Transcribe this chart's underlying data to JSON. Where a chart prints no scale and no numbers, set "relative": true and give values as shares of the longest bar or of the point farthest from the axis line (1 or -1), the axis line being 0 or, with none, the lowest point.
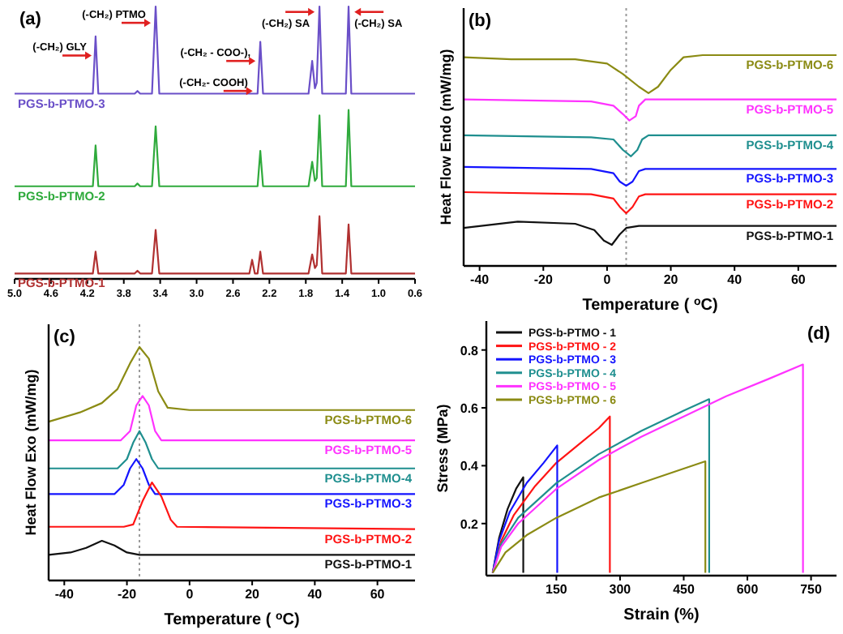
{
  "chart_data": [
    {
      "type": "line",
      "title": "(a)",
      "relative": true,
      "xlim": [
        5.0,
        0.6
      ],
      "xticks": [
        {
          "value": 5,
          "label": "5.0"
        },
        4.6,
        4.2,
        3.8,
        3.4,
        {
          "value": 3,
          "label": "3.0"
        },
        2.6,
        2.2,
        1.8,
        1.4,
        {
          "value": 1,
          "label": "1.0"
        },
        0.6
      ],
      "x": [
        5.0,
        4.14,
        4.11,
        4.08,
        3.68,
        3.65,
        3.62,
        3.49,
        3.45,
        3.41,
        2.42,
        2.39,
        2.36,
        2.33,
        2.3,
        2.27,
        1.77,
        1.73,
        1.7,
        1.68,
        1.65,
        1.62,
        1.36,
        1.33,
        1.3,
        0.6
      ],
      "series": [
        {
          "name": "PGS-b-PTMO-3",
          "color": "#6a4fc8",
          "values": [
            0.68,
            0.68,
            0.89,
            0.68,
            0.68,
            0.69,
            0.68,
            0.68,
            1.0,
            0.68,
            0.68,
            0.68,
            0.68,
            0.68,
            0.87,
            0.68,
            0.68,
            0.8,
            0.7,
            0.72,
            1.0,
            0.68,
            0.68,
            1.0,
            0.68,
            0.68
          ]
        },
        {
          "name": "PGS-b-PTMO-2",
          "color": "#2faa3c",
          "values": [
            0.34,
            0.34,
            0.49,
            0.34,
            0.34,
            0.35,
            0.34,
            0.34,
            0.56,
            0.34,
            0.34,
            0.34,
            0.34,
            0.34,
            0.47,
            0.34,
            0.34,
            0.43,
            0.36,
            0.37,
            0.6,
            0.34,
            0.34,
            0.62,
            0.34,
            0.34
          ]
        },
        {
          "name": "PGS-b-PTMO-1",
          "color": "#b03030",
          "values": [
            0.02,
            0.02,
            0.1,
            0.02,
            0.02,
            0.03,
            0.02,
            0.02,
            0.18,
            0.02,
            0.02,
            0.07,
            0.02,
            0.02,
            0.1,
            0.02,
            0.02,
            0.09,
            0.04,
            0.05,
            0.23,
            0.02,
            0.02,
            0.2,
            0.02,
            0.02
          ]
        }
      ],
      "annotations": [
        {
          "text": "(-CH₂) GLY",
          "x": 4.1,
          "y": 0.82
        },
        {
          "text": "(-CH₂) PTMO",
          "x": 3.45,
          "y": 0.94
        },
        {
          "text": "(-CH₂ - COO-),",
          "x": 2.3,
          "y": 0.8
        },
        {
          "text": "(-CH₂- COOH)",
          "x": 2.33,
          "y": 0.69
        },
        {
          "text": "(-CH₂) SA",
          "x": 1.65,
          "y": 0.98
        },
        {
          "text": "(-CH₂) SA",
          "x": 1.32,
          "y": 0.98
        }
      ]
    },
    {
      "type": "line",
      "title": "(b)",
      "relative": true,
      "xlabel": "Temperature ( $^{o}$C)",
      "ylabel": "Heat Flow Endo (mW/mg)",
      "xlim": [
        -45,
        72
      ],
      "xticks": [
        -40,
        -20,
        0,
        20,
        40,
        60
      ],
      "ref_lines": [
        {
          "axis": "x",
          "value": 6,
          "color": "#999999",
          "line_style": "dotted"
        }
      ],
      "series": [
        {
          "name": "PGS-b-PTMO-6",
          "color": "#8b8b14",
          "x": [
            -45,
            -30,
            -10,
            0,
            5,
            10,
            13,
            16,
            20,
            24,
            30,
            72
          ],
          "values": [
            0.99,
            0.98,
            0.98,
            0.96,
            0.91,
            0.85,
            0.82,
            0.85,
            0.93,
            0.99,
            1,
            1
          ]
        },
        {
          "name": "PGS-b-PTMO-5",
          "color": "#ff33ff",
          "x": [
            -45,
            -5,
            2,
            5,
            7,
            9,
            10,
            12,
            72
          ],
          "values": [
            0.79,
            0.78,
            0.76,
            0.72,
            0.69,
            0.71,
            0.76,
            0.79,
            0.79
          ]
        },
        {
          "name": "PGS-b-PTMO-4",
          "color": "#1f8f8f",
          "x": [
            -45,
            -5,
            2,
            5,
            7.5,
            9.5,
            11,
            13,
            72
          ],
          "values": [
            0.62,
            0.61,
            0.6,
            0.55,
            0.52,
            0.55,
            0.6,
            0.62,
            0.62
          ]
        },
        {
          "name": "PGS-b-PTMO-3",
          "color": "#1414ff",
          "x": [
            -45,
            -5,
            2,
            4,
            6,
            8,
            10,
            12,
            72
          ],
          "values": [
            0.47,
            0.46,
            0.44,
            0.4,
            0.38,
            0.4,
            0.45,
            0.46,
            0.46
          ]
        },
        {
          "name": "PGS-b-PTMO-2",
          "color": "#ff1414",
          "x": [
            -45,
            -5,
            2,
            4,
            6,
            8,
            10,
            12,
            72
          ],
          "values": [
            0.35,
            0.34,
            0.32,
            0.28,
            0.25,
            0.28,
            0.33,
            0.34,
            0.34
          ]
        },
        {
          "name": "PGS-b-PTMO-1",
          "color": "#111111",
          "x": [
            -45,
            -28,
            -10,
            -4,
            -1,
            1.5,
            4,
            6,
            10,
            72
          ],
          "values": [
            0.18,
            0.21,
            0.2,
            0.17,
            0.12,
            0.1,
            0.15,
            0.18,
            0.19,
            0.19
          ]
        }
      ]
    },
    {
      "type": "line",
      "title": "(c)",
      "relative": true,
      "xlabel": "Temperature ( $^{o}$C)",
      "ylabel": "Heat Flow Exo (mW/mg)",
      "xlim": [
        -45,
        72
      ],
      "xticks": [
        -40,
        -20,
        0,
        20,
        40,
        60
      ],
      "ref_lines": [
        {
          "axis": "x",
          "value": -16,
          "color": "#999999",
          "line_style": "dotted"
        }
      ],
      "series": [
        {
          "name": "PGS-b-PTMO-6",
          "color": "#8b8b14",
          "x": [
            -45,
            -35,
            -28,
            -23,
            -19,
            -16,
            -13,
            -10,
            -7,
            0,
            72
          ],
          "values": [
            0.68,
            0.72,
            0.76,
            0.82,
            0.93,
            1,
            0.95,
            0.81,
            0.74,
            0.73,
            0.73
          ]
        },
        {
          "name": "PGS-b-PTMO-5",
          "color": "#ff33ff",
          "x": [
            -45,
            -22,
            -19,
            -17,
            -15,
            -13,
            -11,
            -9,
            72
          ],
          "values": [
            0.6,
            0.6,
            0.64,
            0.75,
            0.79,
            0.75,
            0.64,
            0.6,
            0.6
          ]
        },
        {
          "name": "PGS-b-PTMO-4",
          "color": "#1f8f8f",
          "x": [
            -45,
            -23,
            -20,
            -18,
            -16,
            -14,
            -12,
            -10,
            72
          ],
          "values": [
            0.48,
            0.48,
            0.52,
            0.59,
            0.64,
            0.59,
            0.52,
            0.48,
            0.48
          ]
        },
        {
          "name": "PGS-b-PTMO-3",
          "color": "#1414ff",
          "x": [
            -45,
            -24,
            -21,
            -19,
            -17,
            -15,
            -13,
            -11,
            72
          ],
          "values": [
            0.37,
            0.37,
            0.41,
            0.48,
            0.52,
            0.48,
            0.41,
            0.37,
            0.37
          ]
        },
        {
          "name": "PGS-b-PTMO-2",
          "color": "#ff1414",
          "x": [
            -45,
            -21,
            -18,
            -15,
            -12,
            -9,
            -6,
            -4,
            72
          ],
          "values": [
            0.23,
            0.23,
            0.24,
            0.34,
            0.42,
            0.36,
            0.26,
            0.23,
            0.22
          ]
        },
        {
          "name": "PGS-b-PTMO-1",
          "color": "#111111",
          "x": [
            -45,
            -38,
            -33,
            -28,
            -24,
            -20,
            -16,
            72
          ],
          "values": [
            0.11,
            0.12,
            0.14,
            0.17,
            0.15,
            0.12,
            0.11,
            0.11
          ]
        }
      ]
    },
    {
      "type": "line",
      "title": "(d)",
      "xlabel": "Strain (%)",
      "ylabel": "Stress (MPa)",
      "xlim": [
        -15,
        810
      ],
      "xticks": [
        150,
        300,
        450,
        600,
        750
      ],
      "ylim": [
        0.02,
        0.9
      ],
      "yticks": [
        0.2,
        0.4,
        0.6,
        0.8
      ],
      "legend": "top left",
      "series": [
        {
          "name": "PGS-b-PTMO - 1",
          "color": "#111111",
          "x": [
            0,
            15,
            35,
            55,
            72,
            72
          ],
          "values": [
            0.03,
            0.15,
            0.25,
            0.32,
            0.36,
            0.03
          ]
        },
        {
          "name": "PGS-b-PTMO - 2",
          "color": "#ff1414",
          "x": [
            0,
            20,
            50,
            100,
            150,
            200,
            250,
            276,
            276
          ],
          "values": [
            0.03,
            0.14,
            0.23,
            0.33,
            0.41,
            0.47,
            0.53,
            0.57,
            0.03
          ]
        },
        {
          "name": "PGS-b-PTMO - 3",
          "color": "#1414ff",
          "x": [
            0,
            15,
            40,
            80,
            120,
            152,
            152
          ],
          "values": [
            0.03,
            0.14,
            0.24,
            0.34,
            0.41,
            0.47,
            0.03
          ]
        },
        {
          "name": "PGS-b-PTMO - 4",
          "color": "#1f8f8f",
          "x": [
            0,
            20,
            60,
            150,
            250,
            350,
            450,
            510,
            510
          ],
          "values": [
            0.03,
            0.13,
            0.22,
            0.34,
            0.44,
            0.52,
            0.59,
            0.63,
            0.03
          ]
        },
        {
          "name": "PGS-b-PTMO - 5",
          "color": "#ff33ff",
          "x": [
            0,
            20,
            60,
            150,
            250,
            350,
            450,
            550,
            650,
            731,
            731
          ],
          "values": [
            0.03,
            0.12,
            0.2,
            0.32,
            0.42,
            0.5,
            0.57,
            0.64,
            0.7,
            0.75,
            0.03
          ]
        },
        {
          "name": "PGS-b-PTMO - 6",
          "color": "#8b8b14",
          "x": [
            0,
            30,
            80,
            150,
            250,
            350,
            450,
            501,
            501
          ],
          "values": [
            0.03,
            0.1,
            0.16,
            0.22,
            0.29,
            0.34,
            0.39,
            0.415,
            0.03
          ]
        }
      ]
    }
  ]
}
